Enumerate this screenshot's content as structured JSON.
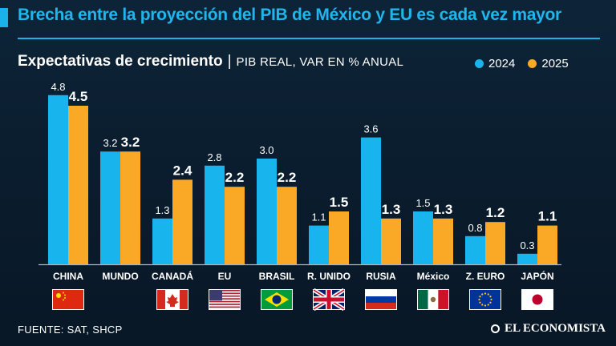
{
  "headline": "Brecha entre la proyección del PIB de México y EU es cada vez mayor",
  "subtitle": "Expectativas de crecimiento",
  "subtitle_separator": "|",
  "subtitle_unit": "PIB REAL, VAR EN % ANUAL",
  "source": "FUENTE:  SAT, SHCP",
  "brand": "EL ECONOMISTA",
  "colors": {
    "series_2024": "#18b4ee",
    "series_2025": "#f9a926",
    "accent": "#1ab2ea"
  },
  "chart_data": {
    "type": "bar",
    "title": "Expectativas de crecimiento",
    "ylabel": "PIB REAL, VAR EN % ANUAL",
    "xlabel": "",
    "ylim": [
      0,
      5
    ],
    "grid": false,
    "legend_position": "top-right",
    "categories": [
      "CHINA",
      "MUNDO",
      "CANADÁ",
      "EU",
      "BRASIL",
      "R. UNIDO",
      "RUSIA",
      "México",
      "Z. EURO",
      "JAPÓN"
    ],
    "flags": [
      "china",
      "",
      "canada",
      "usa",
      "brazil",
      "uk",
      "russia",
      "mexico",
      "eu",
      "japan"
    ],
    "series": [
      {
        "name": "2024",
        "values": [
          4.8,
          3.2,
          1.3,
          2.8,
          3.0,
          1.1,
          3.6,
          1.5,
          0.8,
          0.3
        ],
        "labels": [
          "4.8",
          "3.2",
          "1.3",
          "2.8",
          "3.0",
          "1.1",
          "3.6",
          "1.5",
          "0.8",
          "0.3"
        ]
      },
      {
        "name": "2025",
        "values": [
          4.5,
          3.2,
          2.4,
          2.2,
          2.2,
          1.5,
          1.3,
          1.3,
          1.2,
          1.1
        ],
        "labels": [
          "4.5",
          "3.2",
          "2.4",
          "2.2",
          "2.2",
          "1.5",
          "1.3",
          "1.3",
          "1.2",
          "1.1"
        ]
      }
    ]
  }
}
